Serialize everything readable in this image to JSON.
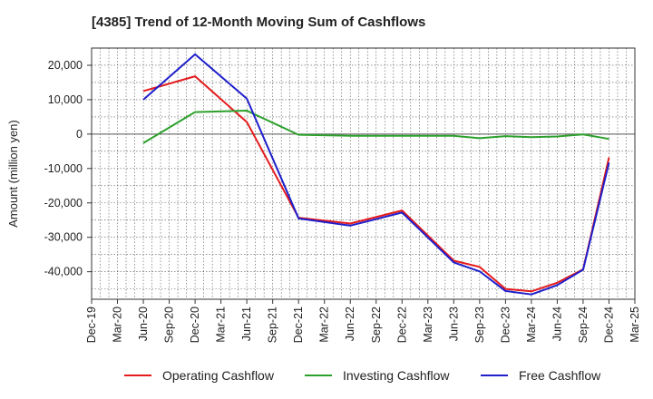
{
  "title": "[4385]  Trend of 12-Month Moving Sum of Cashflows",
  "chart_data": {
    "type": "line",
    "title": "[4385]  Trend of 12-Month Moving Sum of Cashflows",
    "xlabel": "",
    "ylabel": "Amount (million yen)",
    "x_tick_labels": [
      "Dec-19",
      "Mar-20",
      "Jun-20",
      "Sep-20",
      "Dec-20",
      "Mar-21",
      "Jun-21",
      "Sep-21",
      "Dec-21",
      "Mar-22",
      "Jun-22",
      "Sep-22",
      "Dec-22",
      "Mar-23",
      "Jun-23",
      "Sep-23",
      "Dec-23",
      "Mar-24",
      "Jun-24",
      "Sep-24",
      "Dec-24",
      "Mar-25"
    ],
    "y_ticks": [
      -40000,
      -30000,
      -20000,
      -10000,
      0,
      10000,
      20000
    ],
    "y_tick_labels": [
      "-40,000",
      "-30,000",
      "-20,000",
      "-10,000",
      "0",
      "10,000",
      "20,000"
    ],
    "ylim": [
      -48000,
      25000
    ],
    "grid": true,
    "legend_position": "bottom",
    "series": [
      {
        "name": "Operating Cashflow",
        "color": "#e41a1c",
        "x": [
          "Jun-20",
          "Dec-20",
          "Jun-21",
          "Dec-21",
          "Jun-22",
          "Dec-22",
          "Jun-23",
          "Sep-23",
          "Dec-23",
          "Mar-24",
          "Jun-24",
          "Sep-24",
          "Dec-24"
        ],
        "values": [
          12500,
          16800,
          3500,
          -24300,
          -26000,
          -22200,
          -36800,
          -38600,
          -45000,
          -45700,
          -43200,
          -39300,
          -6800
        ]
      },
      {
        "name": "Investing Cashflow",
        "color": "#2ca02c",
        "x": [
          "Jun-20",
          "Dec-20",
          "Jun-21",
          "Dec-21",
          "Jun-22",
          "Dec-22",
          "Jun-23",
          "Sep-23",
          "Dec-23",
          "Mar-24",
          "Jun-24",
          "Sep-24",
          "Dec-24"
        ],
        "values": [
          -2600,
          6400,
          6800,
          -200,
          -500,
          -500,
          -500,
          -1200,
          -600,
          -900,
          -700,
          -100,
          -1400
        ]
      },
      {
        "name": "Free Cashflow",
        "color": "#1f1fcc",
        "x": [
          "Jun-20",
          "Dec-20",
          "Jun-21",
          "Dec-21",
          "Jun-22",
          "Dec-22",
          "Jun-23",
          "Sep-23",
          "Dec-23",
          "Mar-24",
          "Jun-24",
          "Sep-24",
          "Dec-24"
        ],
        "values": [
          10000,
          23200,
          10300,
          -24500,
          -26600,
          -22800,
          -37300,
          -39900,
          -45600,
          -46600,
          -43900,
          -39400,
          -8300
        ]
      }
    ]
  }
}
